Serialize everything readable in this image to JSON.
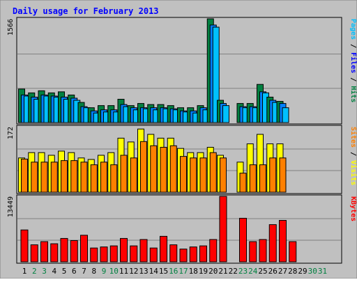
{
  "colors": {
    "background": "#c0c0c0",
    "title": "#0000ff",
    "pages": "#00c0ff",
    "files": "#0080ff",
    "hits": "#008040",
    "sites": "#ff8000",
    "visits": "#ffff00",
    "kbytes": "#ff0000",
    "weekday_label": "#000000",
    "weekend_label": "#008040",
    "gridline": "#808080"
  },
  "chart_data": {
    "type": "bar",
    "title": "Daily usage for February 2013",
    "categories": [
      "1",
      "2",
      "3",
      "4",
      "5",
      "6",
      "7",
      "8",
      "9",
      "10",
      "11",
      "12",
      "13",
      "14",
      "15",
      "16",
      "17",
      "18",
      "19",
      "20",
      "21",
      "22",
      "23",
      "24",
      "25",
      "26",
      "27",
      "28",
      "29",
      "30",
      "31"
    ],
    "weekend_days": [
      "2",
      "3",
      "9",
      "10",
      "16",
      "17",
      "23",
      "24",
      "30",
      "31"
    ],
    "grid": true,
    "panels": [
      {
        "name": "hits_files_pages",
        "axis_max_label": "1566",
        "ylim": [
          0,
          1566
        ],
        "legend": [
          {
            "text": "Pages",
            "color": "#00c0ff"
          },
          {
            "text": " / ",
            "color": "#000000"
          },
          {
            "text": "Files",
            "color": "#0000ff"
          },
          {
            "text": " / ",
            "color": "#000000"
          },
          {
            "text": "Hits",
            "color": "#008040"
          }
        ],
        "series": [
          {
            "name": "Hits",
            "color": "#008040",
            "values": [
              506,
              448,
              480,
              448,
              464,
              416,
              304,
              224,
              256,
              256,
              352,
              256,
              288,
              272,
              272,
              256,
              224,
              224,
              256,
              1566,
              336,
              0,
              288,
              288,
              576,
              384,
              320,
              0,
              0,
              0,
              0
            ]
          },
          {
            "name": "Files",
            "color": "#0080ff",
            "values": [
              416,
              384,
              416,
              400,
              384,
              368,
              240,
              176,
              192,
              192,
              272,
              224,
              224,
              224,
              224,
              208,
              176,
              176,
              224,
              1472,
              288,
              0,
              240,
              240,
              464,
              336,
              288,
              0,
              0,
              0,
              0
            ]
          },
          {
            "name": "Pages",
            "color": "#00c0ff",
            "values": [
              400,
              352,
              400,
              384,
              352,
              336,
              224,
              144,
              160,
              160,
              240,
              192,
              208,
              192,
              208,
              192,
              160,
              144,
              192,
              1440,
              256,
              0,
              224,
              224,
              448,
              304,
              224,
              0,
              0,
              0,
              0
            ]
          }
        ]
      },
      {
        "name": "visits_sites",
        "axis_max_label": "172",
        "ylim": [
          0,
          172
        ],
        "legend": [
          {
            "text": "Sites",
            "color": "#ff8000"
          },
          {
            "text": " / ",
            "color": "#000000"
          },
          {
            "text": "Visits",
            "color": "#ffff00"
          }
        ],
        "series": [
          {
            "name": "Visits",
            "color": "#ffff00",
            "values": [
              90,
              104,
              104,
              97,
              108,
              104,
              90,
              86,
              97,
              104,
              142,
              132,
              166,
              152,
              142,
              142,
              115,
              104,
              104,
              118,
              97,
              0,
              79,
              127,
              152,
              127,
              127,
              0,
              0,
              0,
              0
            ]
          },
          {
            "name": "Sites",
            "color": "#ff8000",
            "values": [
              87,
              79,
              79,
              79,
              83,
              83,
              79,
              72,
              79,
              72,
              97,
              90,
              133,
              122,
              118,
              122,
              94,
              90,
              90,
              104,
              90,
              0,
              50,
              72,
              72,
              90,
              90,
              0,
              0,
              0,
              0
            ]
          }
        ]
      },
      {
        "name": "kbytes",
        "axis_max_label": "13449",
        "ylim": [
          0,
          13449
        ],
        "legend": [
          {
            "text": "KBytes",
            "color": "#ff0000"
          }
        ],
        "series": [
          {
            "name": "KBytes",
            "color": "#ff0000",
            "values": [
              6550,
              3493,
              4148,
              3712,
              4803,
              4367,
              5459,
              2839,
              3057,
              3275,
              4803,
              3275,
              4585,
              2839,
              5240,
              3493,
              2620,
              3057,
              3275,
              4585,
              13449,
              0,
              8951,
              4148,
              4585,
              7640,
              8514,
              4148,
              0,
              0,
              0
            ]
          }
        ]
      }
    ]
  }
}
